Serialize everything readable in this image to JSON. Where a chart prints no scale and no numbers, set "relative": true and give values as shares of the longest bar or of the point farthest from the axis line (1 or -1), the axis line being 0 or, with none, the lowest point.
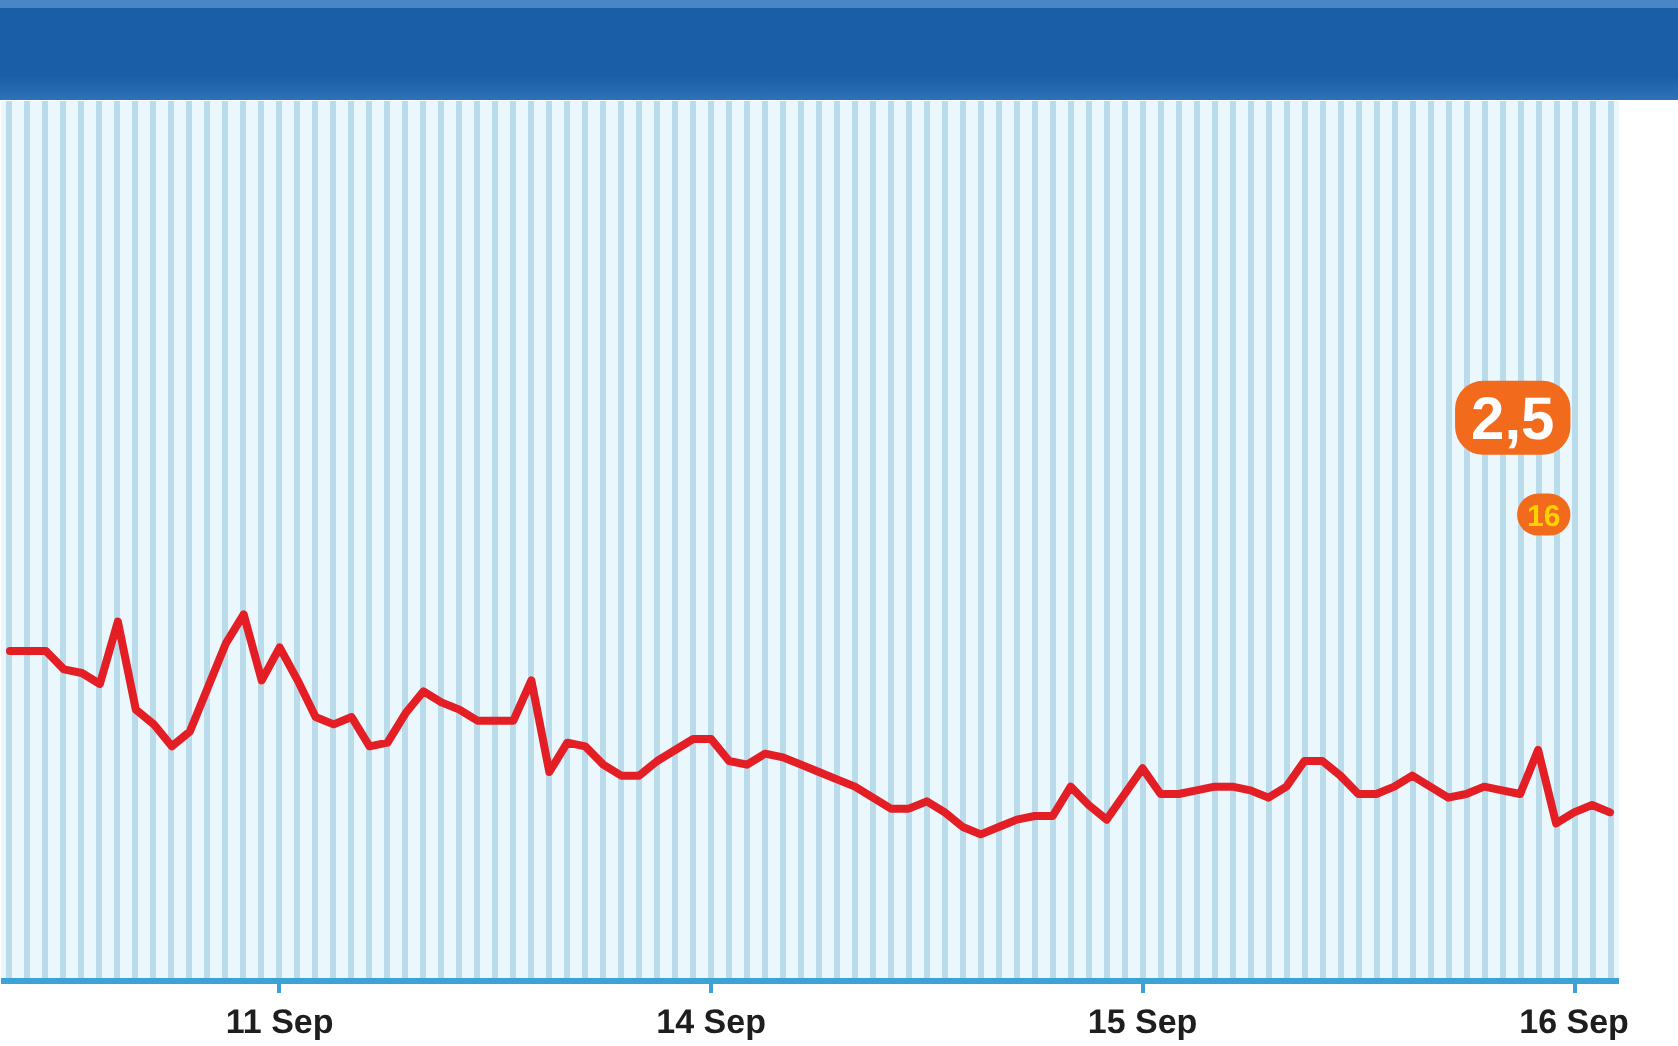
{
  "chart_data": {
    "type": "line",
    "relative": true,
    "categories": [
      null,
      null,
      null,
      null,
      null,
      null,
      null,
      null,
      null,
      null,
      null,
      null,
      null,
      null,
      null,
      "11 Sep",
      null,
      null,
      null,
      null,
      null,
      null,
      null,
      null,
      null,
      null,
      null,
      null,
      null,
      null,
      null,
      null,
      null,
      null,
      null,
      null,
      null,
      null,
      null,
      "14 Sep",
      null,
      null,
      null,
      null,
      null,
      null,
      null,
      null,
      null,
      null,
      null,
      null,
      null,
      null,
      null,
      null,
      null,
      null,
      null,
      null,
      null,
      null,
      null,
      "15 Sep",
      null,
      null,
      null,
      null,
      null,
      null,
      null,
      null,
      null,
      null,
      null,
      null,
      null,
      null,
      null,
      null,
      null,
      null,
      null,
      null,
      null,
      null,
      null,
      "16 Sep",
      null,
      null
    ],
    "values": [
      0.9,
      0.9,
      0.9,
      0.85,
      0.84,
      0.81,
      0.98,
      0.74,
      0.7,
      0.64,
      0.68,
      0.8,
      0.92,
      1.0,
      0.82,
      0.91,
      0.82,
      0.72,
      0.7,
      0.72,
      0.64,
      0.65,
      0.73,
      0.79,
      0.76,
      0.74,
      0.71,
      0.71,
      0.71,
      0.82,
      0.57,
      0.65,
      0.64,
      0.59,
      0.56,
      0.56,
      0.6,
      0.63,
      0.66,
      0.66,
      0.6,
      0.59,
      0.62,
      0.61,
      0.59,
      0.57,
      0.55,
      0.53,
      0.5,
      0.47,
      0.47,
      0.49,
      0.46,
      0.42,
      0.4,
      0.42,
      0.44,
      0.45,
      0.45,
      0.53,
      0.48,
      0.44,
      0.51,
      0.58,
      0.51,
      0.51,
      0.52,
      0.53,
      0.53,
      0.52,
      0.5,
      0.53,
      0.6,
      0.6,
      0.56,
      0.51,
      0.51,
      0.53,
      0.56,
      0.53,
      0.5,
      0.51,
      0.53,
      0.52,
      0.51,
      0.63,
      0.43,
      0.46,
      0.48,
      0.46
    ],
    "color": "#e31e24",
    "line_style": "solid",
    "grid": "x",
    "annotations": [
      "2,5",
      "16"
    ]
  }
}
